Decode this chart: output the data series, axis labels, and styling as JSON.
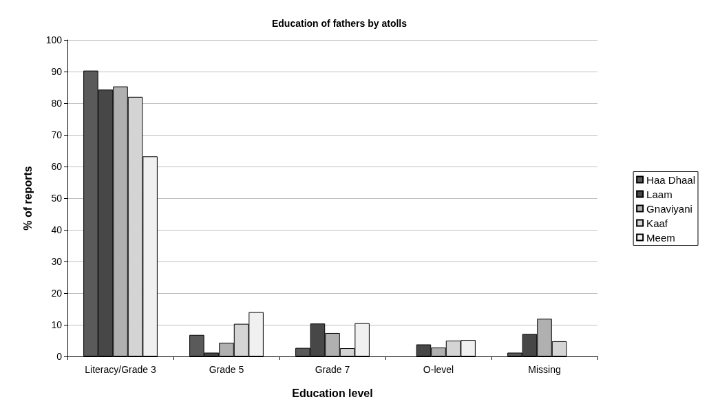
{
  "chart_data": {
    "type": "bar",
    "title": "Education of fathers by atolls",
    "xlabel": "Education level",
    "ylabel": "% of reports",
    "categories": [
      "Literacy/Grade 3",
      "Grade 5",
      "Grade 7",
      "O-level",
      "Missing"
    ],
    "series": [
      {
        "name": "Haa Dhaal",
        "color": "#5a5a5a",
        "values": [
          90.3,
          6.8,
          2.7,
          null,
          1.2
        ]
      },
      {
        "name": "Laam",
        "color": "#474747",
        "values": [
          84.3,
          1.2,
          10.4,
          3.8,
          7.1
        ]
      },
      {
        "name": "Gnaviyani",
        "color": "#b0b0b0",
        "values": [
          85.3,
          4.3,
          7.4,
          2.8,
          11.9
        ]
      },
      {
        "name": "Kaaf",
        "color": "#d4d4d4",
        "values": [
          82.0,
          10.3,
          2.6,
          5.0,
          4.8
        ]
      },
      {
        "name": "Meem",
        "color": "#f0f0f0",
        "values": [
          63.2,
          14.0,
          10.5,
          5.2,
          null
        ]
      }
    ],
    "ylim": [
      0,
      100
    ],
    "yticks": [
      0,
      10,
      20,
      30,
      40,
      50,
      60,
      70,
      80,
      90,
      100
    ],
    "grid": "y",
    "legend": "right"
  }
}
